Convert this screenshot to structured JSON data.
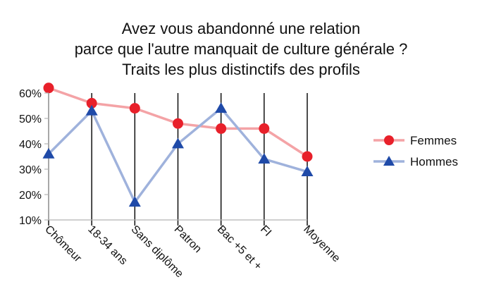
{
  "chart_data": {
    "type": "line",
    "title_lines": [
      "Avez vous abandonné une relation",
      "parce que l'autre manquait de culture générale ?",
      "Traits les plus distinctifs des profils"
    ],
    "categories": [
      "Chômeur",
      "18-34 ans",
      "Sans diplôme",
      "Patron",
      "Bac +5 et +",
      "FI",
      "Moyenne"
    ],
    "y_ticks": [
      "60%",
      "50%",
      "40%",
      "30%",
      "20%",
      "10%"
    ],
    "ylim": [
      10,
      60
    ],
    "y_unit": "%",
    "grid": "vertical",
    "legend_position": "right",
    "series": [
      {
        "name": "Femmes",
        "values": [
          62,
          56,
          54,
          48,
          46,
          46,
          35
        ],
        "marker": "circle",
        "color": "#e8202a",
        "line_color": "#f4a3a6"
      },
      {
        "name": "Hommes",
        "values": [
          36,
          53,
          17,
          40,
          54,
          34,
          29
        ],
        "marker": "triangle",
        "color": "#1f4aa8",
        "line_color": "#9fb2dc"
      }
    ]
  }
}
